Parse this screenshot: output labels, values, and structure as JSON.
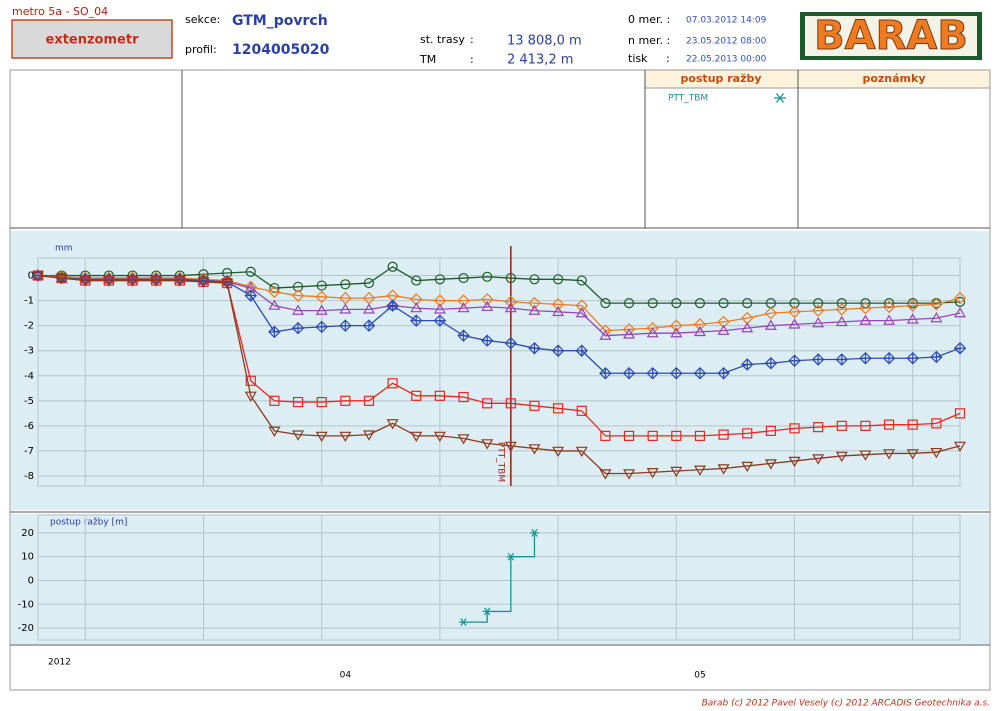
{
  "header": {
    "project": "metro 5a - SO_04",
    "instrument": "extenzometr",
    "section": {
      "label": "sekce:",
      "value": "GTM_povrch"
    },
    "profile": {
      "label": "profil:",
      "value": "1204005020"
    },
    "station": {
      "label": "st. trasy",
      "sep": ":",
      "value": "13 808,0 m"
    },
    "tm": {
      "label": "TM",
      "sep": ":",
      "value": "2 413,2 m"
    },
    "first_measurement": {
      "label": "0 mer. :",
      "value": "07.03.2012 14:09"
    },
    "last_measurement": {
      "label": "n mer. :",
      "value": "23.05.2012 08:00"
    },
    "print": {
      "label": "tisk",
      "sep": ":",
      "value": "22.05.2013 00:00"
    },
    "logo": "BARAB"
  },
  "panels": {
    "progress_title": "postup ražby",
    "notes_title": "poznámky"
  },
  "footer": "Barab (c) 2012 Pavel Vesely (c) 2012 ARCADIS Geotechnika a.s.",
  "chart_data": [
    {
      "type": "line",
      "y_label": "mm",
      "x_year": "2012",
      "categories": [
        null,
        null,
        null,
        null,
        null,
        null,
        null,
        null,
        null,
        null,
        null,
        null,
        null,
        "04",
        null,
        null,
        null,
        null,
        null,
        null,
        null,
        null,
        null,
        null,
        null,
        null,
        null,
        null,
        "05",
        null,
        null,
        null,
        null,
        null,
        null,
        null,
        null,
        null,
        null,
        null
      ],
      "ylim": [
        -8.4,
        0.7
      ],
      "yticks": [
        0,
        -1,
        -2,
        -3,
        -4,
        -5,
        -6,
        -7,
        -8
      ],
      "grid": true,
      "annotation": {
        "text": "PTT_TBM",
        "at": 20,
        "color": "#a02814"
      },
      "series": [
        {
          "color": "#1e5a2a",
          "marker": "circle",
          "values": [
            0,
            0,
            0,
            0,
            0,
            0,
            0,
            0.05,
            0.1,
            0.15,
            -0.5,
            -0.45,
            -0.4,
            -0.35,
            -0.3,
            0.35,
            -0.2,
            -0.15,
            -0.1,
            -0.05,
            -0.1,
            -0.15,
            -0.15,
            -0.2,
            -1.1,
            -1.1,
            -1.1,
            -1.1,
            -1.1,
            -1.1,
            -1.1,
            -1.1,
            -1.1,
            -1.1,
            -1.1,
            -1.1,
            -1.1,
            -1.1,
            -1.1,
            -1.05
          ]
        },
        {
          "color": "#f07a20",
          "marker": "diamond",
          "values": [
            0,
            -0.05,
            -0.1,
            -0.1,
            -0.1,
            -0.1,
            -0.1,
            -0.15,
            -0.2,
            -0.45,
            -0.65,
            -0.8,
            -0.85,
            -0.9,
            -0.9,
            -0.8,
            -0.95,
            -1.0,
            -1.0,
            -0.95,
            -1.05,
            -1.1,
            -1.15,
            -1.2,
            -2.2,
            -2.15,
            -2.1,
            -2.0,
            -1.95,
            -1.85,
            -1.7,
            -1.5,
            -1.45,
            -1.4,
            -1.35,
            -1.3,
            -1.25,
            -1.2,
            -1.15,
            -0.9
          ]
        },
        {
          "color": "#9a44b8",
          "marker": "triangle-up",
          "values": [
            0,
            -0.1,
            -0.15,
            -0.15,
            -0.15,
            -0.15,
            -0.15,
            -0.2,
            -0.25,
            -0.5,
            -1.2,
            -1.4,
            -1.4,
            -1.35,
            -1.35,
            -1.2,
            -1.3,
            -1.35,
            -1.3,
            -1.25,
            -1.3,
            -1.4,
            -1.45,
            -1.5,
            -2.4,
            -2.35,
            -2.3,
            -2.3,
            -2.25,
            -2.2,
            -2.1,
            -2.0,
            -1.95,
            -1.9,
            -1.85,
            -1.8,
            -1.8,
            -1.75,
            -1.7,
            -1.5
          ]
        },
        {
          "color": "#2c4cb4",
          "marker": "diamond-cross",
          "values": [
            0,
            -0.1,
            -0.15,
            -0.15,
            -0.15,
            -0.15,
            -0.15,
            -0.2,
            -0.25,
            -0.8,
            -2.25,
            -2.1,
            -2.05,
            -2.0,
            -2.0,
            -1.2,
            -1.8,
            -1.8,
            -2.4,
            -2.6,
            -2.7,
            -2.9,
            -3.0,
            -3.0,
            -3.9,
            -3.9,
            -3.9,
            -3.9,
            -3.9,
            -3.9,
            -3.55,
            -3.5,
            -3.4,
            -3.35,
            -3.35,
            -3.3,
            -3.3,
            -3.3,
            -3.25,
            -2.9
          ]
        },
        {
          "color": "#e8281e",
          "marker": "square",
          "values": [
            0,
            -0.1,
            -0.2,
            -0.2,
            -0.2,
            -0.2,
            -0.2,
            -0.25,
            -0.3,
            -4.2,
            -5.0,
            -5.05,
            -5.05,
            -5.0,
            -5.0,
            -4.3,
            -4.8,
            -4.8,
            -4.85,
            -5.1,
            -5.1,
            -5.2,
            -5.3,
            -5.4,
            -6.4,
            -6.4,
            -6.4,
            -6.4,
            -6.4,
            -6.35,
            -6.3,
            -6.2,
            -6.1,
            -6.05,
            -6.0,
            -6.0,
            -5.95,
            -5.95,
            -5.9,
            -5.5
          ]
        },
        {
          "color": "#8c3a1c",
          "marker": "triangle-down",
          "values": [
            0,
            -0.1,
            -0.2,
            -0.2,
            -0.2,
            -0.2,
            -0.2,
            -0.25,
            -0.3,
            -4.8,
            -6.2,
            -6.35,
            -6.4,
            -6.4,
            -6.35,
            -5.9,
            -6.4,
            -6.4,
            -6.5,
            -6.7,
            -6.8,
            -6.9,
            -7.0,
            -7.0,
            -7.9,
            -7.9,
            -7.85,
            -7.8,
            -7.75,
            -7.7,
            -7.6,
            -7.5,
            -7.4,
            -7.3,
            -7.2,
            -7.15,
            -7.1,
            -7.1,
            -7.05,
            -6.8
          ]
        }
      ]
    },
    {
      "type": "line",
      "steps": "post",
      "y_label": "postup ražby [m]",
      "ylim": [
        -25,
        27.5
      ],
      "yticks": [
        20,
        10,
        0,
        -10,
        -20
      ],
      "grid": true,
      "series": [
        {
          "name": "PTT_TBM",
          "color": "#149494",
          "marker": "star",
          "values": [
            null,
            null,
            null,
            null,
            null,
            null,
            null,
            null,
            null,
            null,
            null,
            null,
            null,
            null,
            null,
            null,
            null,
            null,
            -17.5,
            -13,
            10,
            20,
            null,
            null,
            null,
            null,
            null,
            null,
            null,
            null,
            null,
            null,
            null,
            null,
            null,
            null,
            null,
            null,
            null,
            null
          ]
        }
      ]
    }
  ]
}
